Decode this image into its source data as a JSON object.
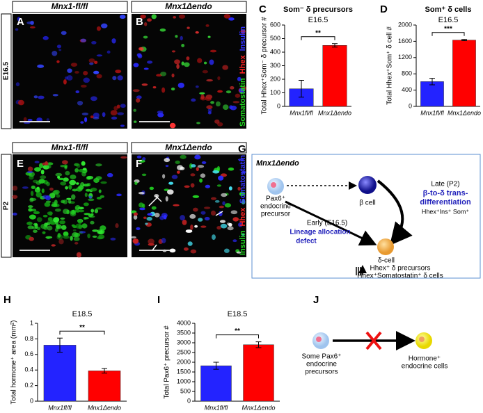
{
  "panel_labels": [
    "A",
    "B",
    "E",
    "F",
    "G",
    "J"
  ],
  "image_rows": [
    {
      "row_label": "E16.5",
      "left_header": "Mnx1-fl/fl",
      "right_header": "Mnx1Δendo",
      "stains": [
        {
          "text": "Somatostatin",
          "color": "#22dd22"
        },
        {
          "text": "Hhex",
          "color": "#ff2222"
        },
        {
          "text": "Insulin",
          "color": "#3333ff"
        }
      ]
    },
    {
      "row_label": "P2",
      "left_header": "Mnx1-fl/fl",
      "right_header": "Mnx1Δendo",
      "stains": [
        {
          "text": "Insulin",
          "color": "#22dd22"
        },
        {
          "text": "Hhex",
          "color": "#ff2222"
        },
        {
          "text": "Somatostatin",
          "color": "#3333ff"
        }
      ]
    }
  ],
  "chart_data": [
    {
      "type": "bar",
      "panel": "C",
      "title": "Som⁻ δ precursors",
      "subtitle": "E16.5",
      "y_label": "Total Hhex⁺Som⁻ δ precursor #",
      "categories": [
        "Mnx1fl/fl",
        "Mnx1Δendo"
      ],
      "values": [
        130,
        450
      ],
      "errors": [
        62,
        13
      ],
      "colors": [
        "#2323ff",
        "#ff0000"
      ],
      "ylim": [
        0,
        600
      ],
      "yticks": [
        0,
        100,
        200,
        300,
        400,
        500,
        600
      ],
      "annotation": "**"
    },
    {
      "type": "bar",
      "panel": "D",
      "title": "Som⁺ δ cells",
      "subtitle": "E16.5",
      "y_label": "Total Hhex⁺Som⁺ δ cell #",
      "categories": [
        "Mnx1fl/fl",
        "Mnx1Δendo"
      ],
      "values": [
        610,
        1630
      ],
      "errors": [
        80,
        15
      ],
      "colors": [
        "#2323ff",
        "#ff0000"
      ],
      "ylim": [
        0,
        2000
      ],
      "yticks": [
        0,
        400,
        800,
        1200,
        1600,
        2000
      ],
      "annotation": "***"
    },
    {
      "type": "bar",
      "panel": "H",
      "title": "E18.5",
      "y_label": "Total hormone⁺ area (mm²)",
      "categories": [
        "Mnx1fl/fl",
        "Mnx1Δendo"
      ],
      "values": [
        0.72,
        0.39
      ],
      "errors": [
        0.09,
        0.03
      ],
      "colors": [
        "#2323ff",
        "#ff0000"
      ],
      "ylim": [
        0,
        1
      ],
      "yticks": [
        0,
        0.2,
        0.4,
        0.6,
        0.8,
        1
      ],
      "annotation": "**"
    },
    {
      "type": "bar",
      "panel": "I",
      "title": "E18.5",
      "y_label": "Total Pax6⁺ precursor #",
      "categories": [
        "Mnx1fl/fl",
        "Mnx1Δendo"
      ],
      "values": [
        1820,
        2900
      ],
      "errors": [
        180,
        150
      ],
      "colors": [
        "#2323ff",
        "#ff0000"
      ],
      "ylim": [
        0,
        4000
      ],
      "yticks": [
        0,
        500,
        1000,
        1500,
        2000,
        2500,
        3000,
        3500,
        4000
      ],
      "annotation": "**"
    }
  ],
  "diagram_g": {
    "title": "Mnx1Δendo",
    "precursor": [
      "Pax6⁺",
      "endocrine",
      "precursor"
    ],
    "beta_cell": "β cell",
    "late": [
      "Late (P2)",
      "β-to-δ  trans-",
      "differentiation",
      "Hhex⁺Ins⁺ Som⁺"
    ],
    "early": [
      "Early  (E16.5)",
      "Lineage allocation",
      "defect"
    ],
    "delta_cell": "δ-cell",
    "delta_outcomes": [
      "Hhex⁺ δ precursors",
      "Hhex⁺Somatostatin⁺ δ cells"
    ]
  },
  "diagram_j": {
    "source": [
      "Some Pax6⁺",
      "endocrine",
      "precursors"
    ],
    "target": [
      "Hormone⁺",
      "endocrine cells"
    ]
  }
}
